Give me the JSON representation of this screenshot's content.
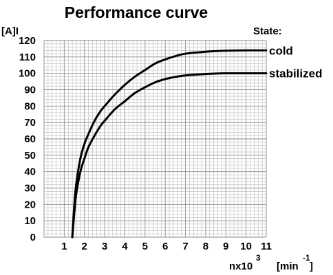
{
  "chart_data": {
    "type": "line",
    "title": "Performance curve",
    "ylabel": "[A]I",
    "xlabel_base": "nx10",
    "xlabel_exp": "3",
    "xunit_base": "[min",
    "xunit_exp": "-1",
    "xunit_close": "]",
    "legend_title": "State:",
    "xlim": [
      0,
      11
    ],
    "ylim": [
      0,
      120
    ],
    "xticks": [
      1,
      2,
      3,
      4,
      5,
      6,
      7,
      8,
      9,
      10,
      11
    ],
    "yticks": [
      0,
      10,
      20,
      30,
      40,
      50,
      60,
      70,
      80,
      90,
      100,
      110,
      120
    ],
    "grid": true,
    "series": [
      {
        "name": "cold",
        "x": [
          1.4,
          1.5,
          1.6,
          1.8,
          2.0,
          2.2,
          2.5,
          2.8,
          3.0,
          3.5,
          4.0,
          4.5,
          5.0,
          5.5,
          6.0,
          6.5,
          7.0,
          8.0,
          9.0,
          10.0,
          11.0
        ],
        "y": [
          0,
          20,
          33,
          48,
          57,
          63,
          71,
          77,
          80,
          87,
          93,
          98,
          102,
          106,
          108.5,
          110.5,
          112,
          113.2,
          113.8,
          114,
          114
        ]
      },
      {
        "name": "stabilized",
        "x": [
          1.4,
          1.5,
          1.6,
          1.8,
          2.0,
          2.2,
          2.5,
          2.8,
          3.0,
          3.5,
          4.0,
          4.5,
          5.0,
          5.5,
          6.0,
          6.5,
          7.0,
          8.0,
          9.0,
          10.0,
          11.0
        ],
        "y": [
          0,
          15,
          27,
          40,
          48,
          55,
          62,
          68,
          71,
          78,
          83,
          88,
          91.5,
          94.5,
          96.5,
          97.8,
          98.7,
          99.6,
          100,
          100,
          100
        ]
      }
    ]
  }
}
